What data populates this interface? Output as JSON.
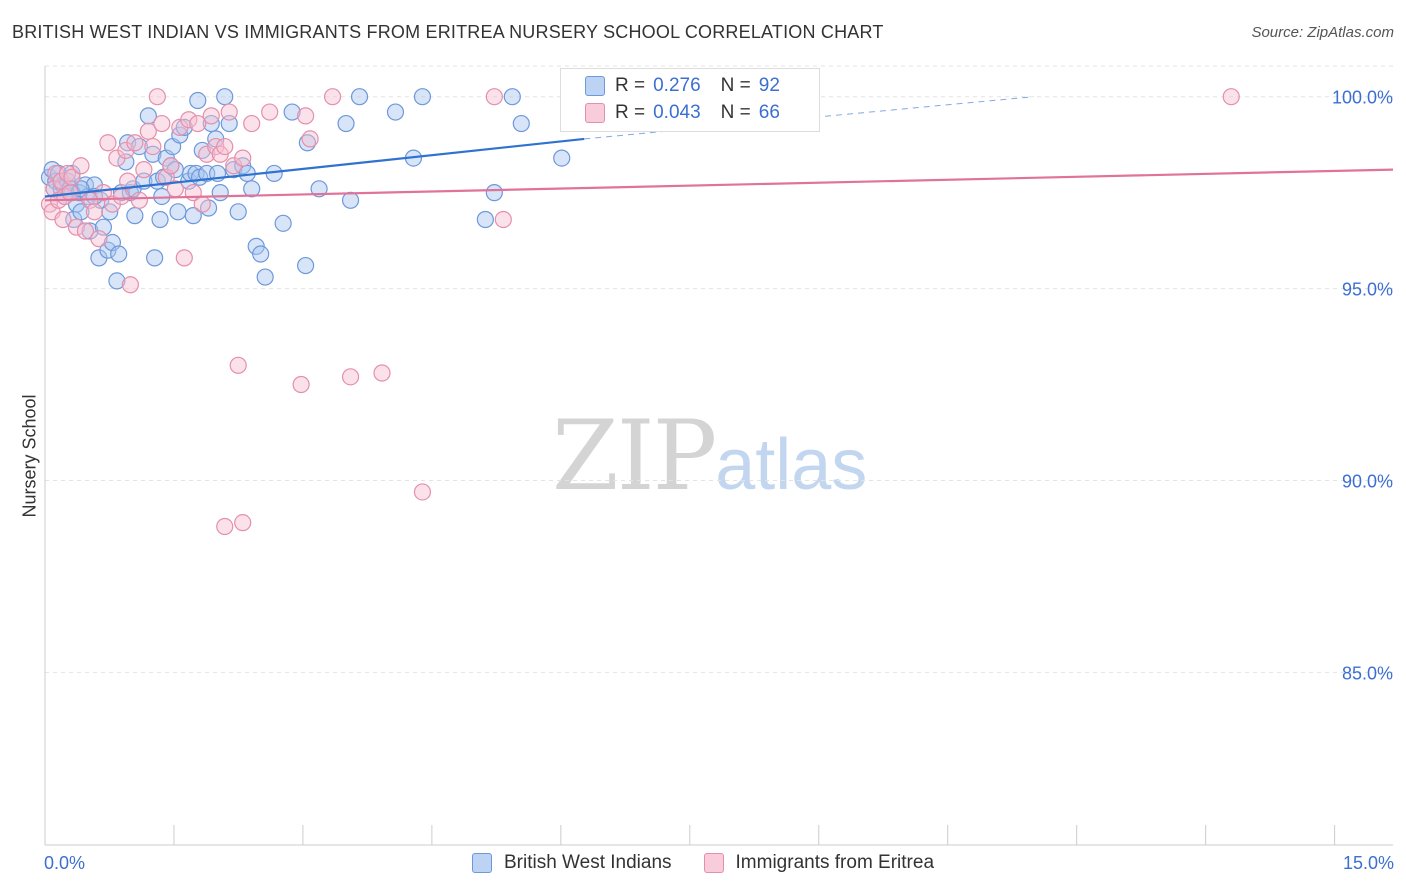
{
  "header": {
    "title": "BRITISH WEST INDIAN VS IMMIGRANTS FROM ERITREA NURSERY SCHOOL CORRELATION CHART",
    "source": "Source: ZipAtlas.com"
  },
  "watermark": {
    "zip": "ZIP",
    "atlas": "atlas"
  },
  "legend": {
    "rows": [
      {
        "r_label": "R =",
        "r_value": "0.276",
        "n_label": "N =",
        "n_value": "92"
      },
      {
        "r_label": "R =",
        "r_value": "0.043",
        "n_label": "N =",
        "n_value": "66"
      }
    ]
  },
  "bottom_legend": [
    "British West Indians",
    "Immigrants from Eritrea"
  ],
  "colors": {
    "blue_fill": "#a9c5ef",
    "blue_stroke": "#6d98db",
    "blue_line": "#2f72d0",
    "pink_fill": "#f6bfd0",
    "pink_stroke": "#e58fac",
    "pink_line": "#e0739a",
    "axis_text": "#3c6fd1",
    "grid": "#e3e3e3"
  },
  "chart_data": {
    "type": "scatter",
    "title": "BRITISH WEST INDIAN VS IMMIGRANTS FROM ERITREA NURSERY SCHOOL CORRELATION CHART",
    "xlabel": "",
    "ylabel": "Nursery School",
    "xlim": [
      0,
      15
    ],
    "ylim": [
      80.5,
      100.8
    ],
    "x_tick_labels": [
      "0.0%",
      "15.0%"
    ],
    "y_ticks": [
      100,
      95,
      90,
      85
    ],
    "y_tick_labels": [
      "100.0%",
      "95.0%",
      "90.0%",
      "85.0%"
    ],
    "grid": true,
    "legend_position": "top-center",
    "series": [
      {
        "name": "British West Indians",
        "r": 0.276,
        "n": 92,
        "trend": {
          "x0": 0.0,
          "y0": 97.4,
          "x1": 6.0,
          "y1": 98.9,
          "dashed_to_x": 11.0,
          "dashed_to_y": 100.0
        },
        "points": [
          [
            0.05,
            97.9
          ],
          [
            0.08,
            98.1
          ],
          [
            0.1,
            97.6
          ],
          [
            0.12,
            97.8
          ],
          [
            0.15,
            98.0
          ],
          [
            0.18,
            97.6
          ],
          [
            0.2,
            97.7
          ],
          [
            0.22,
            97.4
          ],
          [
            0.25,
            97.8
          ],
          [
            0.28,
            97.6
          ],
          [
            0.3,
            97.5
          ],
          [
            0.32,
            96.8
          ],
          [
            0.35,
            97.2
          ],
          [
            0.38,
            97.5
          ],
          [
            0.4,
            97.0
          ],
          [
            0.45,
            97.7
          ],
          [
            0.48,
            97.4
          ],
          [
            0.5,
            96.5
          ],
          [
            0.55,
            97.7
          ],
          [
            0.6,
            95.8
          ],
          [
            0.62,
            97.3
          ],
          [
            0.65,
            96.6
          ],
          [
            0.7,
            96.0
          ],
          [
            0.72,
            97.0
          ],
          [
            0.75,
            96.2
          ],
          [
            0.8,
            95.2
          ],
          [
            0.82,
            95.9
          ],
          [
            0.85,
            97.5
          ],
          [
            0.9,
            98.3
          ],
          [
            0.92,
            98.8
          ],
          [
            0.95,
            97.5
          ],
          [
            0.98,
            97.6
          ],
          [
            1.0,
            96.9
          ],
          [
            1.05,
            98.7
          ],
          [
            1.1,
            97.8
          ],
          [
            1.15,
            99.5
          ],
          [
            1.2,
            98.5
          ],
          [
            1.22,
            95.8
          ],
          [
            1.25,
            97.8
          ],
          [
            1.28,
            96.8
          ],
          [
            1.3,
            97.4
          ],
          [
            1.32,
            97.9
          ],
          [
            1.35,
            98.4
          ],
          [
            1.4,
            98.2
          ],
          [
            1.42,
            98.7
          ],
          [
            1.45,
            98.1
          ],
          [
            1.48,
            97.0
          ],
          [
            1.5,
            99.0
          ],
          [
            1.55,
            99.2
          ],
          [
            1.6,
            97.8
          ],
          [
            1.62,
            98.0
          ],
          [
            1.65,
            96.9
          ],
          [
            1.68,
            98.0
          ],
          [
            1.7,
            99.9
          ],
          [
            1.72,
            97.9
          ],
          [
            1.75,
            98.6
          ],
          [
            1.8,
            98.0
          ],
          [
            1.82,
            97.1
          ],
          [
            1.85,
            99.3
          ],
          [
            1.9,
            98.9
          ],
          [
            1.92,
            98.0
          ],
          [
            1.95,
            97.5
          ],
          [
            2.0,
            100.0
          ],
          [
            2.05,
            99.3
          ],
          [
            2.1,
            98.1
          ],
          [
            2.15,
            97.0
          ],
          [
            2.2,
            98.2
          ],
          [
            2.25,
            98.0
          ],
          [
            2.3,
            97.6
          ],
          [
            2.35,
            96.1
          ],
          [
            2.4,
            95.9
          ],
          [
            2.45,
            95.3
          ],
          [
            2.55,
            98.0
          ],
          [
            2.65,
            96.7
          ],
          [
            2.75,
            99.6
          ],
          [
            2.9,
            95.6
          ],
          [
            2.92,
            98.8
          ],
          [
            3.05,
            97.6
          ],
          [
            3.35,
            99.3
          ],
          [
            3.4,
            97.3
          ],
          [
            3.5,
            100.0
          ],
          [
            3.9,
            99.6
          ],
          [
            4.1,
            98.4
          ],
          [
            4.2,
            100.0
          ],
          [
            4.9,
            96.8
          ],
          [
            5.0,
            97.5
          ],
          [
            5.2,
            100.0
          ],
          [
            5.3,
            99.3
          ],
          [
            5.75,
            98.4
          ],
          [
            0.3,
            98.0
          ],
          [
            0.4,
            97.6
          ],
          [
            0.55,
            97.4
          ]
        ]
      },
      {
        "name": "Immigrants from Eritrea",
        "r": 0.043,
        "n": 66,
        "trend": {
          "x0": 0.0,
          "y0": 97.3,
          "x1": 15.0,
          "y1": 98.1
        },
        "points": [
          [
            0.05,
            97.2
          ],
          [
            0.08,
            97.0
          ],
          [
            0.1,
            97.6
          ],
          [
            0.12,
            98.0
          ],
          [
            0.15,
            97.3
          ],
          [
            0.18,
            97.8
          ],
          [
            0.2,
            96.8
          ],
          [
            0.22,
            97.4
          ],
          [
            0.25,
            98.0
          ],
          [
            0.28,
            97.5
          ],
          [
            0.3,
            97.9
          ],
          [
            0.35,
            96.6
          ],
          [
            0.4,
            98.2
          ],
          [
            0.45,
            96.5
          ],
          [
            0.5,
            97.3
          ],
          [
            0.55,
            97.0
          ],
          [
            0.6,
            96.3
          ],
          [
            0.65,
            97.5
          ],
          [
            0.7,
            98.8
          ],
          [
            0.75,
            97.2
          ],
          [
            0.8,
            98.4
          ],
          [
            0.85,
            97.4
          ],
          [
            0.9,
            98.6
          ],
          [
            0.92,
            97.8
          ],
          [
            0.95,
            95.1
          ],
          [
            1.0,
            98.8
          ],
          [
            1.05,
            97.3
          ],
          [
            1.1,
            98.1
          ],
          [
            1.15,
            99.1
          ],
          [
            1.2,
            98.7
          ],
          [
            1.25,
            100.0
          ],
          [
            1.3,
            99.3
          ],
          [
            1.35,
            97.9
          ],
          [
            1.4,
            98.2
          ],
          [
            1.45,
            97.6
          ],
          [
            1.5,
            99.2
          ],
          [
            1.55,
            95.8
          ],
          [
            1.6,
            99.4
          ],
          [
            1.65,
            97.5
          ],
          [
            1.7,
            99.3
          ],
          [
            1.75,
            97.2
          ],
          [
            1.8,
            98.5
          ],
          [
            1.85,
            99.5
          ],
          [
            1.9,
            98.7
          ],
          [
            1.95,
            98.5
          ],
          [
            2.0,
            98.7
          ],
          [
            2.05,
            99.6
          ],
          [
            2.1,
            98.2
          ],
          [
            2.15,
            93.0
          ],
          [
            2.2,
            98.4
          ],
          [
            2.3,
            99.3
          ],
          [
            2.5,
            99.6
          ],
          [
            2.9,
            99.5
          ],
          [
            2.95,
            98.9
          ],
          [
            3.2,
            100.0
          ],
          [
            3.4,
            92.7
          ],
          [
            3.75,
            92.8
          ],
          [
            2.85,
            92.5
          ],
          [
            4.2,
            89.7
          ],
          [
            2.0,
            88.8
          ],
          [
            2.2,
            88.9
          ],
          [
            5.0,
            100.0
          ],
          [
            5.1,
            96.8
          ],
          [
            6.0,
            100.0
          ],
          [
            6.5,
            100.0
          ],
          [
            13.2,
            100.0
          ]
        ]
      }
    ]
  }
}
